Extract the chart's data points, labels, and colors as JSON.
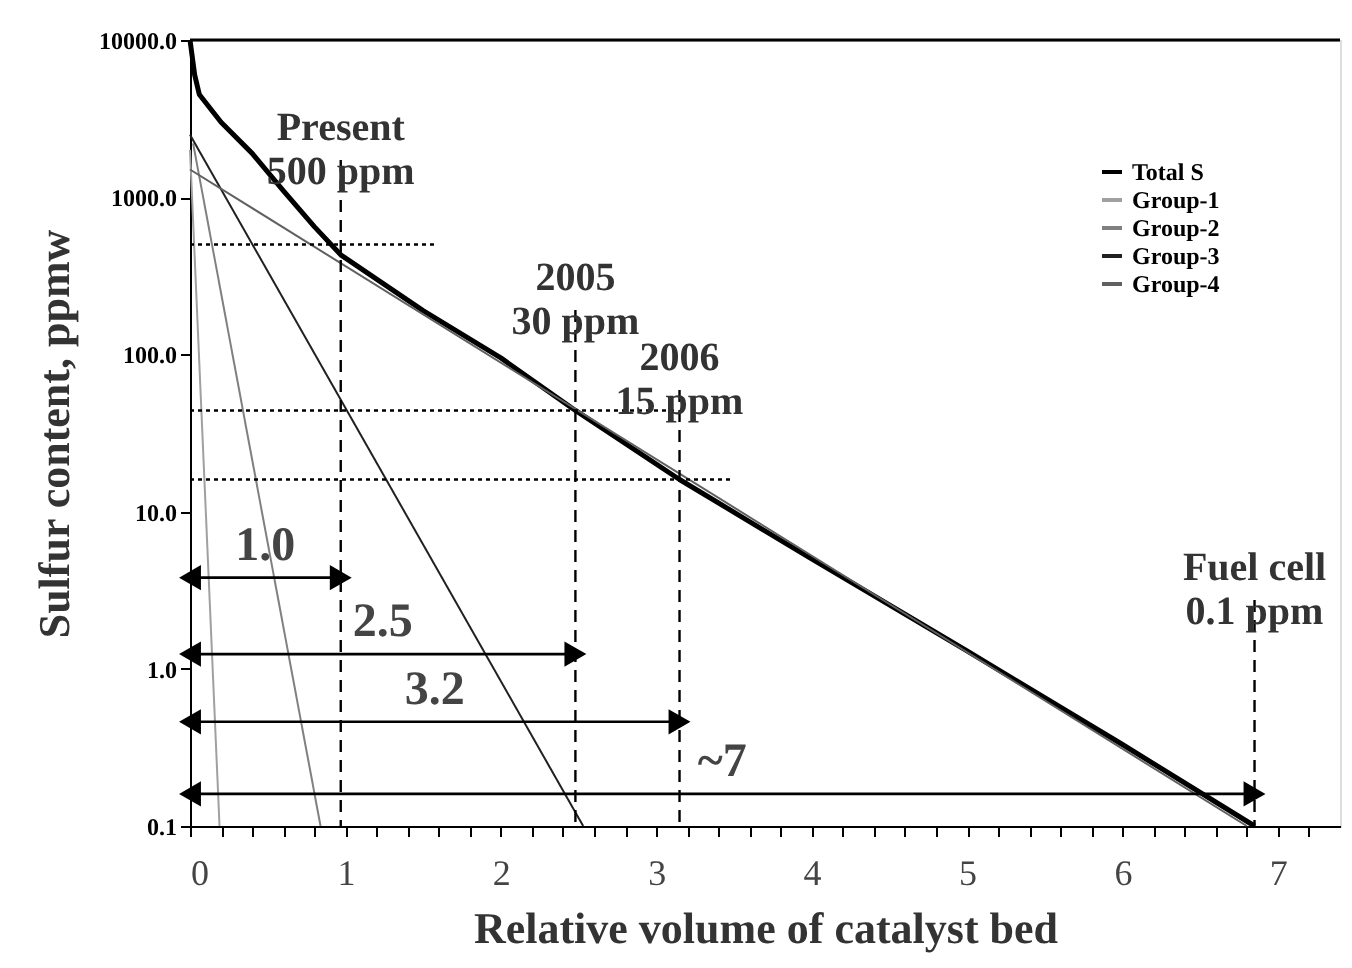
{
  "chart_data": {
    "type": "line",
    "xlabel": "Relative volume of catalyst bed",
    "ylabel": "Sulfur content, ppmw",
    "log": "y",
    "grid": false,
    "legend": "top right",
    "xlim": [
      0,
      7.4
    ],
    "xticks": [
      0,
      {
        "value": 0.2,
        "label": null
      },
      {
        "value": 0.4,
        "label": null
      },
      {
        "value": 0.6,
        "label": null
      },
      {
        "value": 0.8,
        "label": null
      },
      1,
      {
        "value": 1.2,
        "label": null
      },
      {
        "value": 1.4,
        "label": null
      },
      {
        "value": 1.6,
        "label": null
      },
      {
        "value": 1.8,
        "label": null
      },
      2,
      {
        "value": 2.2,
        "label": null
      },
      {
        "value": 2.4,
        "label": null
      },
      {
        "value": 2.6,
        "label": null
      },
      {
        "value": 2.8,
        "label": null
      },
      3,
      {
        "value": 3.2,
        "label": null
      },
      {
        "value": 3.4,
        "label": null
      },
      {
        "value": 3.6,
        "label": null
      },
      {
        "value": 3.8,
        "label": null
      },
      4,
      {
        "value": 4.2,
        "label": null
      },
      {
        "value": 4.4,
        "label": null
      },
      {
        "value": 4.6,
        "label": null
      },
      {
        "value": 4.8,
        "label": null
      },
      5,
      {
        "value": 5.2,
        "label": null
      },
      {
        "value": 5.4,
        "label": null
      },
      {
        "value": 5.6,
        "label": null
      },
      {
        "value": 5.8,
        "label": null
      },
      6,
      {
        "value": 6.2,
        "label": null
      },
      {
        "value": 6.4,
        "label": null
      },
      {
        "value": 6.6,
        "label": null
      },
      {
        "value": 6.8,
        "label": null
      },
      7,
      {
        "value": 7.2,
        "label": null
      }
    ],
    "ylim": [
      0.1,
      10000
    ],
    "yticks": [
      0.1,
      {
        "value": 1,
        "label": "1.0"
      },
      {
        "value": 10,
        "label": "10.0"
      },
      {
        "value": 100,
        "label": "100.0"
      },
      {
        "value": 1000,
        "label": "1000.0"
      },
      {
        "value": 10000,
        "label": "10000.0"
      }
    ],
    "series": [
      {
        "name": "Total S",
        "color": "#000000",
        "x": [
          0,
          0.03,
          0.06,
          0.2,
          0.4,
          0.6,
          0.8,
          0.97,
          1.5,
          2,
          2.48,
          3.15,
          4,
          5,
          6,
          6.85
        ],
        "values": [
          10000,
          6000,
          4500,
          3000,
          1900,
          1100,
          650,
          430,
          190,
          95,
          44,
          16,
          5,
          1.3,
          0.33,
          0.1
        ]
      },
      {
        "name": "Group-1",
        "color": "#a0a0a0",
        "x": [
          0,
          0.19
        ],
        "values": [
          2000,
          0.1
        ]
      },
      {
        "name": "Group-2",
        "color": "#808080",
        "x": [
          0.02,
          0.84
        ],
        "values": [
          2200,
          0.1
        ]
      },
      {
        "name": "Group-3",
        "color": "#202020",
        "x": [
          0,
          2.53
        ],
        "values": [
          2500,
          0.1
        ]
      },
      {
        "name": "Group-4",
        "color": "#606060",
        "x": [
          0,
          6.8
        ],
        "values": [
          1500,
          0.1
        ]
      },
      {
        "type": "line",
        "line_style": "dotted",
        "color": "#000000",
        "x": [
          0,
          1.57
        ],
        "values": [
          500,
          500
        ]
      },
      {
        "type": "line",
        "line_style": "dotted",
        "color": "#000000",
        "x": [
          0,
          3.13
        ],
        "values": [
          44,
          44
        ]
      },
      {
        "type": "line",
        "line_style": "dotted",
        "color": "#000000",
        "x": [
          0,
          3.49
        ],
        "values": [
          16,
          16
        ]
      },
      {
        "type": "line",
        "marker": "triangle",
        "color": "#000000",
        "x": [
          0,
          0.97
        ],
        "values": [
          3.8,
          3.8
        ]
      },
      {
        "type": "line",
        "marker": "triangle",
        "color": "#000000",
        "x": [
          0,
          2.48
        ],
        "values": [
          1.24,
          1.24
        ]
      },
      {
        "type": "line",
        "marker": "triangle",
        "color": "#000000",
        "x": [
          0,
          3.15
        ],
        "values": [
          0.46,
          0.46
        ]
      },
      {
        "type": "line",
        "marker": "triangle",
        "color": "#000000",
        "x": [
          0,
          6.85
        ],
        "values": [
          0.16,
          0.16
        ]
      }
    ],
    "ref_lines": [
      {
        "axis": "x",
        "value": 0.97,
        "label": "Present\n500 ppm",
        "line_style": "dashed"
      },
      {
        "axis": "x",
        "value": 2.48,
        "label": "2005\n30 ppm",
        "line_style": "dashed"
      },
      {
        "axis": "x",
        "value": 3.15,
        "label": "2006\n15 ppm",
        "line_style": "dashed"
      },
      {
        "axis": "x",
        "value": 6.85,
        "label": "Fuel cell\n0.1 ppm",
        "line_style": "dashed"
      }
    ],
    "annotations": [
      "1.0",
      "2.5",
      "3.2",
      "~7"
    ]
  }
}
